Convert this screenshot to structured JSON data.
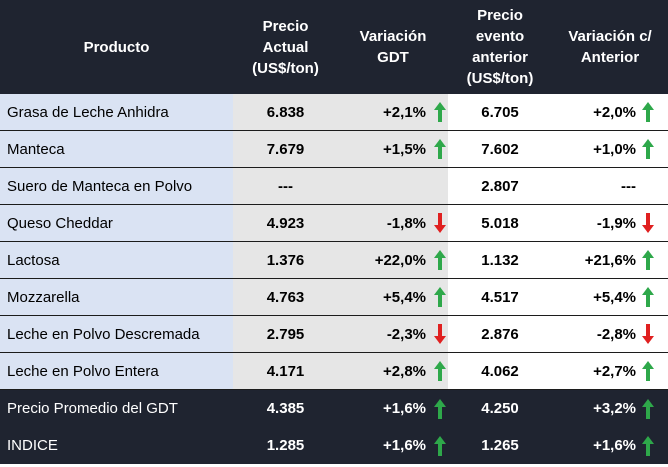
{
  "header": {
    "producto": "Producto",
    "precio_actual": "Precio\nActual\n(US$/ton)",
    "variacion_gdt": "Variación\nGDT",
    "precio_anterior": "Precio\nevento\nanterior\n(US$/ton)",
    "variacion_anterior": "Variación c/\nAnterior"
  },
  "colors": {
    "up": "#2ea84a",
    "down": "#e02020",
    "header_bg": "#1f2430",
    "product_bg": "#dae3f3",
    "current_bg": "#e6e6e6"
  },
  "rows": [
    {
      "producto": "Grasa de Leche Anhidra",
      "precio_actual": "6.838",
      "variacion_gdt": "+2,1%",
      "arrow_gdt": "up",
      "precio_anterior": "6.705",
      "variacion_anterior": "+2,0%",
      "arrow_anterior": "up"
    },
    {
      "producto": "Manteca",
      "precio_actual": "7.679",
      "variacion_gdt": "+1,5%",
      "arrow_gdt": "up",
      "precio_anterior": "7.602",
      "variacion_anterior": "+1,0%",
      "arrow_anterior": "up"
    },
    {
      "producto": "Suero de Manteca en Polvo",
      "precio_actual": "---",
      "variacion_gdt": "",
      "arrow_gdt": "none",
      "precio_anterior": "2.807",
      "variacion_anterior": "---",
      "arrow_anterior": "none"
    },
    {
      "producto": "Queso Cheddar",
      "precio_actual": "4.923",
      "variacion_gdt": "-1,8%",
      "arrow_gdt": "down",
      "precio_anterior": "5.018",
      "variacion_anterior": "-1,9%",
      "arrow_anterior": "down"
    },
    {
      "producto": "Lactosa",
      "precio_actual": "1.376",
      "variacion_gdt": "+22,0%",
      "arrow_gdt": "up",
      "precio_anterior": "1.132",
      "variacion_anterior": "+21,6%",
      "arrow_anterior": "up"
    },
    {
      "producto": "Mozzarella",
      "precio_actual": "4.763",
      "variacion_gdt": "+5,4%",
      "arrow_gdt": "up",
      "precio_anterior": "4.517",
      "variacion_anterior": "+5,4%",
      "arrow_anterior": "up"
    },
    {
      "producto": "Leche en Polvo Descremada",
      "precio_actual": "2.795",
      "variacion_gdt": "-2,3%",
      "arrow_gdt": "down",
      "precio_anterior": "2.876",
      "variacion_anterior": "-2,8%",
      "arrow_anterior": "down"
    },
    {
      "producto": "Leche en Polvo Entera",
      "precio_actual": "4.171",
      "variacion_gdt": "+2,8%",
      "arrow_gdt": "up",
      "precio_anterior": "4.062",
      "variacion_anterior": "+2,7%",
      "arrow_anterior": "up"
    }
  ],
  "totals": [
    {
      "producto": "Precio Promedio del GDT",
      "precio_actual": "4.385",
      "variacion_gdt": "+1,6%",
      "arrow_gdt": "up",
      "precio_anterior": "4.250",
      "variacion_anterior": "+3,2%",
      "arrow_anterior": "up"
    },
    {
      "producto": "INDICE",
      "precio_actual": "1.285",
      "variacion_gdt": "+1,6%",
      "arrow_gdt": "up",
      "precio_anterior": "1.265",
      "variacion_anterior": "+1,6%",
      "arrow_anterior": "up"
    }
  ]
}
